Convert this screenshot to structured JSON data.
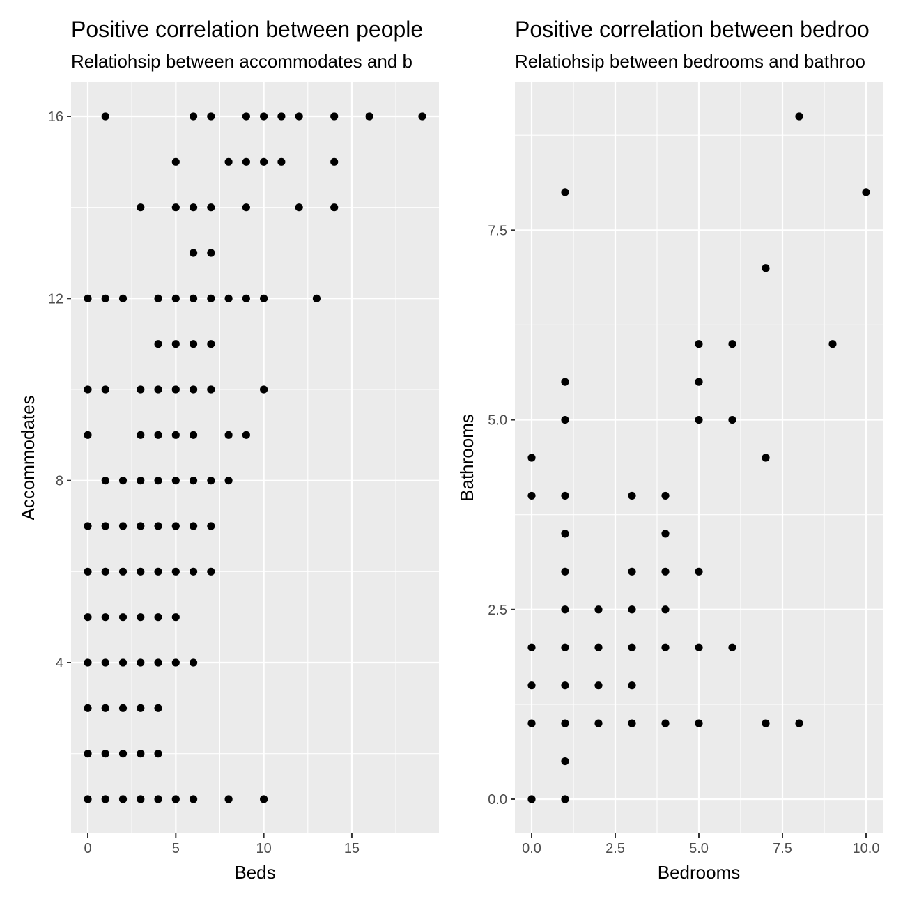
{
  "chart_data": [
    {
      "type": "scatter",
      "title": "Positive correlation between people",
      "subtitle": "Relatiohsip between accommodates and b",
      "xlabel": "Beds",
      "ylabel": "Accommodates",
      "xlim": [
        -0.95,
        19.95
      ],
      "ylim": [
        0.25,
        16.75
      ],
      "x_ticks": [
        0,
        5,
        10,
        15
      ],
      "y_ticks": [
        4,
        8,
        12,
        16
      ],
      "grid": true,
      "points": [
        [
          0,
          1
        ],
        [
          1,
          1
        ],
        [
          2,
          1
        ],
        [
          3,
          1
        ],
        [
          4,
          1
        ],
        [
          5,
          1
        ],
        [
          6,
          1
        ],
        [
          8,
          1
        ],
        [
          10,
          1
        ],
        [
          0,
          2
        ],
        [
          1,
          2
        ],
        [
          2,
          2
        ],
        [
          3,
          2
        ],
        [
          4,
          2
        ],
        [
          0,
          3
        ],
        [
          1,
          3
        ],
        [
          2,
          3
        ],
        [
          3,
          3
        ],
        [
          4,
          3
        ],
        [
          0,
          4
        ],
        [
          1,
          4
        ],
        [
          2,
          4
        ],
        [
          3,
          4
        ],
        [
          4,
          4
        ],
        [
          5,
          4
        ],
        [
          6,
          4
        ],
        [
          0,
          5
        ],
        [
          1,
          5
        ],
        [
          2,
          5
        ],
        [
          3,
          5
        ],
        [
          4,
          5
        ],
        [
          5,
          5
        ],
        [
          0,
          6
        ],
        [
          1,
          6
        ],
        [
          2,
          6
        ],
        [
          3,
          6
        ],
        [
          4,
          6
        ],
        [
          5,
          6
        ],
        [
          6,
          6
        ],
        [
          7,
          6
        ],
        [
          0,
          7
        ],
        [
          1,
          7
        ],
        [
          2,
          7
        ],
        [
          3,
          7
        ],
        [
          4,
          7
        ],
        [
          5,
          7
        ],
        [
          6,
          7
        ],
        [
          7,
          7
        ],
        [
          1,
          8
        ],
        [
          2,
          8
        ],
        [
          3,
          8
        ],
        [
          4,
          8
        ],
        [
          5,
          8
        ],
        [
          6,
          8
        ],
        [
          7,
          8
        ],
        [
          8,
          8
        ],
        [
          0,
          9
        ],
        [
          3,
          9
        ],
        [
          4,
          9
        ],
        [
          5,
          9
        ],
        [
          6,
          9
        ],
        [
          8,
          9
        ],
        [
          9,
          9
        ],
        [
          0,
          10
        ],
        [
          1,
          10
        ],
        [
          3,
          10
        ],
        [
          4,
          10
        ],
        [
          5,
          10
        ],
        [
          6,
          10
        ],
        [
          7,
          10
        ],
        [
          10,
          10
        ],
        [
          4,
          11
        ],
        [
          5,
          11
        ],
        [
          6,
          11
        ],
        [
          7,
          11
        ],
        [
          0,
          12
        ],
        [
          1,
          12
        ],
        [
          2,
          12
        ],
        [
          4,
          12
        ],
        [
          5,
          12
        ],
        [
          6,
          12
        ],
        [
          7,
          12
        ],
        [
          8,
          12
        ],
        [
          9,
          12
        ],
        [
          10,
          12
        ],
        [
          13,
          12
        ],
        [
          6,
          13
        ],
        [
          7,
          13
        ],
        [
          3,
          14
        ],
        [
          5,
          14
        ],
        [
          6,
          14
        ],
        [
          7,
          14
        ],
        [
          9,
          14
        ],
        [
          12,
          14
        ],
        [
          14,
          14
        ],
        [
          5,
          15
        ],
        [
          8,
          15
        ],
        [
          9,
          15
        ],
        [
          10,
          15
        ],
        [
          11,
          15
        ],
        [
          14,
          15
        ],
        [
          1,
          16
        ],
        [
          6,
          16
        ],
        [
          7,
          16
        ],
        [
          9,
          16
        ],
        [
          10,
          16
        ],
        [
          11,
          16
        ],
        [
          12,
          16
        ],
        [
          14,
          16
        ],
        [
          16,
          16
        ],
        [
          19,
          16
        ]
      ]
    },
    {
      "type": "scatter",
      "title": "Positive correlation between bedroo",
      "subtitle": "Relatiohsip between bedrooms and bathroo",
      "xlabel": "Bedrooms",
      "ylabel": "Bathrooms",
      "xlim": [
        -0.5,
        10.5
      ],
      "ylim": [
        -0.45,
        9.45
      ],
      "x_ticks": [
        0,
        2.5,
        5,
        7.5,
        10
      ],
      "x_tick_labels": [
        "0.0",
        "2.5",
        "5.0",
        "7.5",
        "10.0"
      ],
      "y_ticks": [
        0,
        2.5,
        5,
        7.5
      ],
      "y_tick_labels": [
        "0.0",
        "2.5",
        "5.0",
        "7.5"
      ],
      "grid": true,
      "points": [
        [
          0,
          0
        ],
        [
          1,
          0
        ],
        [
          1,
          0.5
        ],
        [
          0,
          1
        ],
        [
          1,
          1
        ],
        [
          2,
          1
        ],
        [
          3,
          1
        ],
        [
          4,
          1
        ],
        [
          5,
          1
        ],
        [
          7,
          1
        ],
        [
          8,
          1
        ],
        [
          0,
          1.5
        ],
        [
          1,
          1.5
        ],
        [
          2,
          1.5
        ],
        [
          3,
          1.5
        ],
        [
          0,
          2
        ],
        [
          1,
          2
        ],
        [
          2,
          2
        ],
        [
          3,
          2
        ],
        [
          4,
          2
        ],
        [
          5,
          2
        ],
        [
          6,
          2
        ],
        [
          1,
          2.5
        ],
        [
          2,
          2.5
        ],
        [
          3,
          2.5
        ],
        [
          4,
          2.5
        ],
        [
          1,
          3
        ],
        [
          3,
          3
        ],
        [
          4,
          3
        ],
        [
          5,
          3
        ],
        [
          1,
          3.5
        ],
        [
          4,
          3.5
        ],
        [
          0,
          4
        ],
        [
          1,
          4
        ],
        [
          3,
          4
        ],
        [
          4,
          4
        ],
        [
          0,
          4.5
        ],
        [
          7,
          4.5
        ],
        [
          1,
          5
        ],
        [
          5,
          5
        ],
        [
          6,
          5
        ],
        [
          1,
          5.5
        ],
        [
          5,
          5.5
        ],
        [
          5,
          6
        ],
        [
          6,
          6
        ],
        [
          9,
          6
        ],
        [
          7,
          7
        ],
        [
          1,
          8
        ],
        [
          10,
          8
        ],
        [
          8,
          9
        ]
      ]
    }
  ]
}
